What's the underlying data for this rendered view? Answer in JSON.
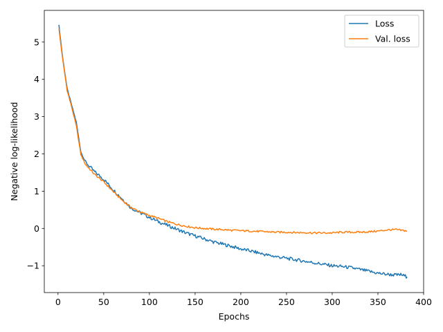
{
  "chart_data": {
    "type": "line",
    "title": "",
    "xlabel": "Epochs",
    "ylabel": "Negative log-likelihood",
    "xlim": [
      -15,
      400
    ],
    "ylim": [
      -1.72,
      5.85
    ],
    "xticks": [
      0,
      50,
      100,
      150,
      200,
      250,
      300,
      350,
      400
    ],
    "yticks": [
      -1,
      0,
      1,
      2,
      3,
      4,
      5
    ],
    "ytick_labels": [
      "−1",
      "0",
      "1",
      "2",
      "3",
      "4",
      "5"
    ],
    "grid": false,
    "legend_position": "top-right",
    "series": [
      {
        "name": "Loss",
        "color": "#1f77b4",
        "x": [
          1,
          5,
          10,
          15,
          20,
          25,
          30,
          40,
          50,
          60,
          70,
          80,
          90,
          100,
          110,
          120,
          130,
          140,
          150,
          160,
          170,
          180,
          190,
          200,
          210,
          220,
          230,
          240,
          250,
          260,
          270,
          280,
          290,
          300,
          310,
          320,
          330,
          340,
          350,
          360,
          370,
          375,
          380,
          382
        ],
        "y": [
          5.45,
          4.6,
          3.75,
          3.3,
          2.85,
          2.05,
          1.78,
          1.52,
          1.32,
          1.05,
          0.8,
          0.55,
          0.42,
          0.3,
          0.18,
          0.08,
          -0.02,
          -0.12,
          -0.2,
          -0.28,
          -0.36,
          -0.42,
          -0.48,
          -0.55,
          -0.6,
          -0.66,
          -0.72,
          -0.76,
          -0.8,
          -0.84,
          -0.88,
          -0.92,
          -0.96,
          -1.0,
          -1.02,
          -1.05,
          -1.1,
          -1.15,
          -1.2,
          -1.23,
          -1.25,
          -1.24,
          -1.28,
          -1.3
        ]
      },
      {
        "name": "Val. loss",
        "color": "#ff7f0e",
        "x": [
          1,
          5,
          10,
          15,
          20,
          25,
          30,
          40,
          50,
          60,
          70,
          80,
          90,
          100,
          110,
          120,
          130,
          140,
          150,
          160,
          170,
          180,
          190,
          200,
          210,
          220,
          230,
          240,
          250,
          260,
          270,
          280,
          290,
          300,
          310,
          320,
          330,
          340,
          350,
          360,
          370,
          375,
          380,
          382
        ],
        "y": [
          5.35,
          4.55,
          3.7,
          3.25,
          2.75,
          1.98,
          1.72,
          1.45,
          1.25,
          1.0,
          0.76,
          0.56,
          0.44,
          0.35,
          0.27,
          0.18,
          0.11,
          0.06,
          0.02,
          0.0,
          -0.02,
          -0.03,
          -0.05,
          -0.06,
          -0.07,
          -0.08,
          -0.09,
          -0.1,
          -0.1,
          -0.11,
          -0.11,
          -0.12,
          -0.12,
          -0.12,
          -0.1,
          -0.1,
          -0.1,
          -0.09,
          -0.07,
          -0.04,
          -0.03,
          -0.05,
          -0.06,
          -0.07
        ]
      }
    ]
  }
}
